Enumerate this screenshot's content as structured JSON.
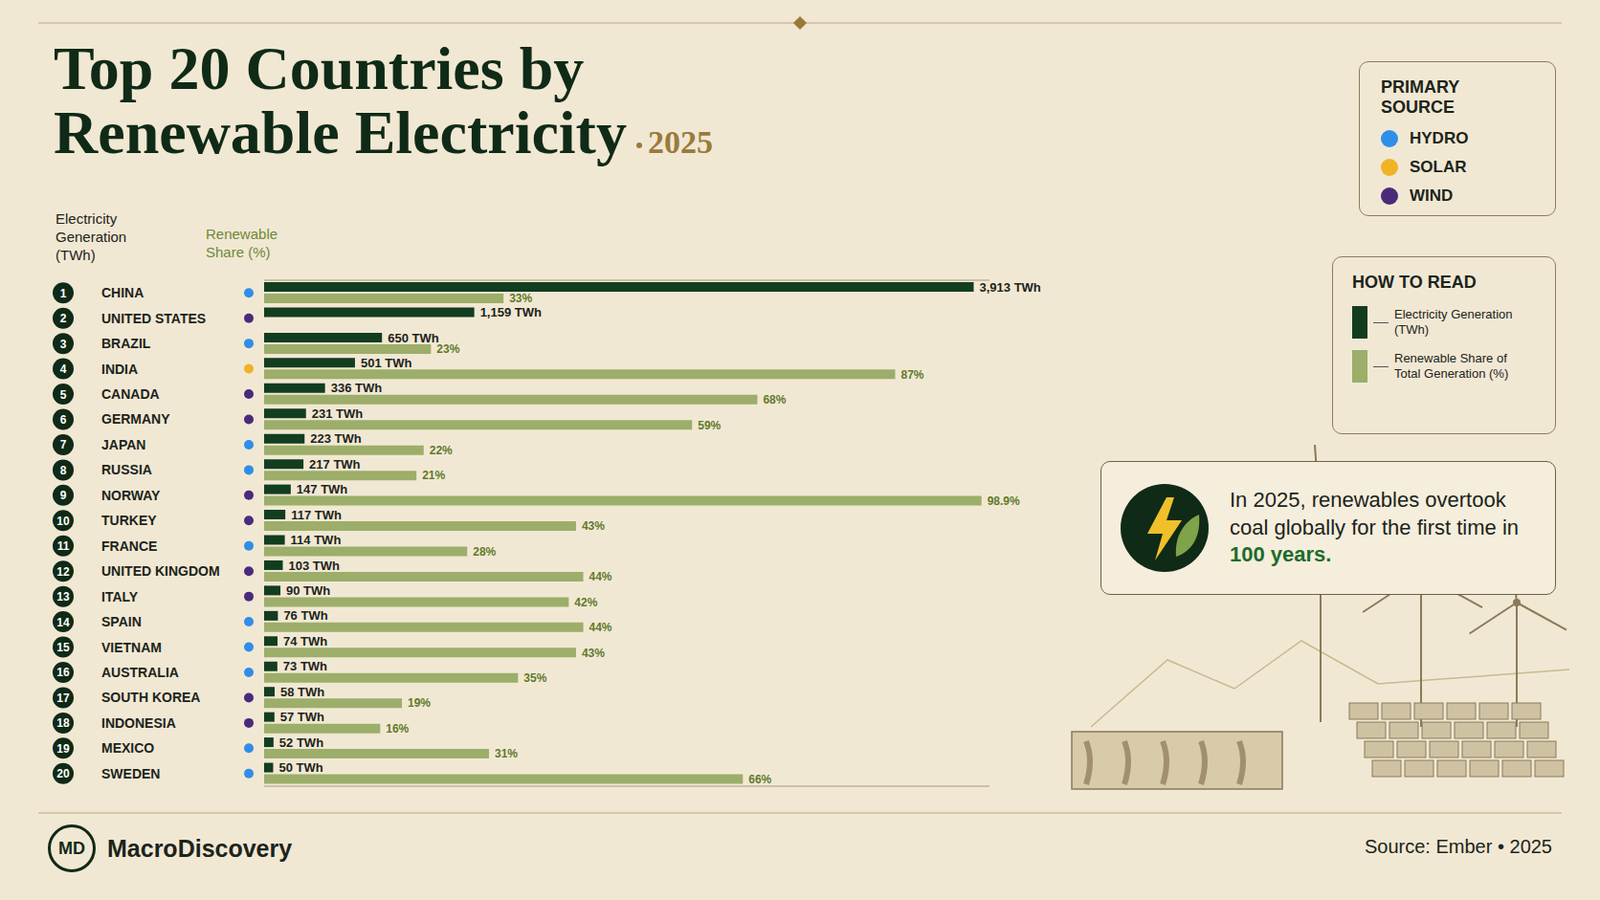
{
  "chart_data": {
    "type": "bar",
    "title": "Top 20 Countries by Renewable Electricity",
    "subtitle": "2025",
    "orientation": "horizontal",
    "column_headers": [
      "Electricity Generation (TWh)",
      "Renewable Share (%)"
    ],
    "ranks": [
      1,
      2,
      3,
      4,
      5,
      6,
      7,
      8,
      9,
      10,
      11,
      12,
      13,
      14,
      15,
      16,
      17,
      18,
      19,
      20
    ],
    "categories": [
      "CHINA",
      "UNITED STATES",
      "BRAZIL",
      "INDIA",
      "CANADA",
      "GERMANY",
      "JAPAN",
      "RUSSIA",
      "NORWAY",
      "TURKEY",
      "FRANCE",
      "UNITED KINGDOM",
      "ITALY",
      "SPAIN",
      "VIETNAM",
      "AUSTRALIA",
      "SOUTH KOREA",
      "INDONESIA",
      "MEXICO",
      "SWEDEN"
    ],
    "primary_source": [
      "HYDRO",
      "WIND",
      "HYDRO",
      "SOLAR",
      "WIND",
      "WIND",
      "HYDRO",
      "HYDRO",
      "WIND",
      "WIND",
      "HYDRO",
      "WIND",
      "WIND",
      "HYDRO",
      "HYDRO",
      "HYDRO",
      "WIND",
      "WIND",
      "HYDRO",
      "HYDRO"
    ],
    "source_legend": {
      "title": "PRIMARY SOURCE",
      "items": [
        {
          "name": "HYDRO",
          "color": "#2f8ee8"
        },
        {
          "name": "SOLAR",
          "color": "#f0b323"
        },
        {
          "name": "WIND",
          "color": "#4b2a7a"
        }
      ]
    },
    "legend_title": "HOW TO READ",
    "legend": "right",
    "series": [
      {
        "name": "Electricity Generation (TWh)",
        "color": "#123d1f",
        "values": [
          3913,
          1159,
          650,
          501,
          336,
          231,
          223,
          217,
          147,
          117,
          114,
          103,
          90,
          76,
          74,
          73,
          58,
          57,
          52,
          50
        ],
        "value_labels": [
          "3,913 TWh",
          "1,159 TWh",
          "650 TWh",
          "501 TWh",
          "336 TWh",
          "231 TWh",
          "223 TWh",
          "217 TWh",
          "147 TWh",
          "117 TWh",
          "114 TWh",
          "103 TWh",
          "90 TWh",
          "76 TWh",
          "74 TWh",
          "73 TWh",
          "58 TWh",
          "57 TWh",
          "52 TWh",
          "50 TWh"
        ]
      },
      {
        "name": "Renewable Share of Total Generation (%)",
        "color": "#9cae6a",
        "axis": "x2",
        "values": [
          33,
          null,
          23,
          87,
          68,
          59,
          22,
          21,
          98.9,
          43,
          28,
          44,
          42,
          44,
          43,
          35,
          19,
          16,
          31,
          66
        ],
        "value_labels": [
          "33%",
          null,
          "23%",
          "87%",
          "68%",
          "59%",
          "22%",
          "21%",
          "98.9%",
          "43%",
          "28%",
          "44%",
          "42%",
          "44%",
          "43%",
          "35%",
          "19%",
          "16%",
          "31%",
          "66%"
        ]
      }
    ],
    "xlim": [
      0,
      4000
    ],
    "x2lim": [
      0,
      100
    ],
    "grid": false,
    "data_labels": true,
    "tick_labels": "y",
    "annotation": {
      "text": "In 2025, renewables overtook coal globally for the first time in",
      "highlight": "100 years."
    },
    "brand": {
      "logo": "MD",
      "name": "MacroDiscovery"
    },
    "source": "Source: Ember • 2025"
  }
}
